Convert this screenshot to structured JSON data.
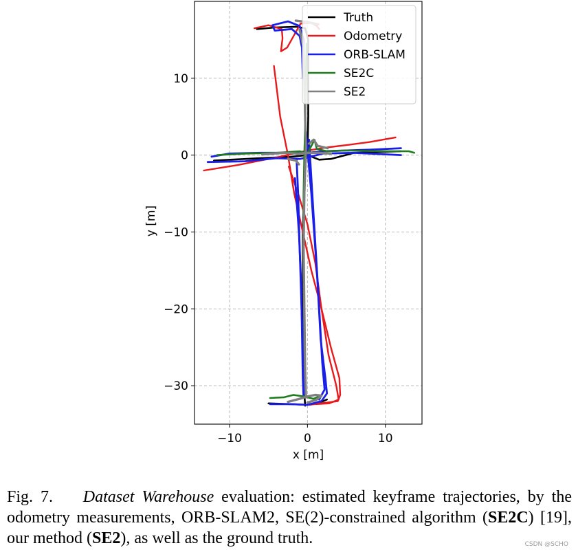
{
  "chart_data": {
    "type": "line",
    "xlabel": "x [m]",
    "ylabel": "y [m]",
    "xlim": [
      -14.5,
      14.7
    ],
    "ylim": [
      -35,
      20
    ],
    "xticks": [
      -10,
      0,
      10
    ],
    "yticks": [
      10,
      0,
      -10,
      -20,
      -30
    ],
    "xtick_labels": [
      "−10",
      "0",
      "10"
    ],
    "ytick_labels": [
      "10",
      "0",
      "−10",
      "−20",
      "−30"
    ],
    "grid": true,
    "legend_position": "top-right",
    "series": [
      {
        "name": "Truth",
        "color": "#000000",
        "paths": [
          [
            [
              -0.3,
              -32.6
            ],
            [
              -0.4,
              -31
            ],
            [
              -0.5,
              -25
            ],
            [
              -0.6,
              -18
            ],
            [
              -0.6,
              -10
            ],
            [
              -0.4,
              -4
            ],
            [
              -0.2,
              -0.5
            ],
            [
              0,
              0
            ],
            [
              0.1,
              5
            ],
            [
              0.1,
              10
            ],
            [
              0.1,
              15
            ],
            [
              -0.3,
              16.5
            ],
            [
              -1.5,
              16.7
            ],
            [
              -4.2,
              16.6
            ],
            [
              -6.5,
              16.4
            ]
          ],
          [
            [
              -12,
              -0.7
            ],
            [
              -6,
              -0.4
            ],
            [
              -2,
              -0.2
            ],
            [
              0,
              0
            ],
            [
              1.5,
              -0.6
            ],
            [
              3,
              -0.5
            ],
            [
              6,
              0.3
            ],
            [
              12,
              0.5
            ]
          ],
          [
            [
              -5,
              -32.3
            ],
            [
              -2,
              -32.4
            ],
            [
              0,
              -32.5
            ],
            [
              1.8,
              -32.1
            ],
            [
              2.5,
              -31.8
            ]
          ]
        ]
      },
      {
        "name": "Odometry",
        "color": "#e8191b",
        "paths": [
          [
            [
              -6.8,
              16.5
            ],
            [
              -5,
              16.9
            ],
            [
              -3.3,
              16.4
            ],
            [
              -3.2,
              15.2
            ],
            [
              -3.4,
              13.5
            ],
            [
              -2.6,
              14
            ],
            [
              -1.5,
              16
            ],
            [
              -0.9,
              17.1
            ],
            [
              0.5,
              17.2
            ],
            [
              1.2,
              16.8
            ],
            [
              1.5,
              16.4
            ]
          ],
          [
            [
              -4.3,
              11.6
            ],
            [
              -3.5,
              5
            ],
            [
              -2.5,
              0
            ],
            [
              -1.7,
              -5
            ],
            [
              -0.6,
              -10
            ],
            [
              0.5,
              -15
            ],
            [
              1.8,
              -20
            ],
            [
              3,
              -25
            ],
            [
              4.1,
              -29
            ],
            [
              4.2,
              -31.2
            ],
            [
              3.9,
              -32
            ],
            [
              2.5,
              -32.2
            ],
            [
              1.5,
              -32.3
            ],
            [
              0.3,
              -32.5
            ]
          ],
          [
            [
              -2.4,
              -1.5
            ],
            [
              -1.2,
              -5
            ],
            [
              0,
              -9
            ],
            [
              1,
              -14
            ],
            [
              1.8,
              -20
            ],
            [
              2.7,
              -26
            ],
            [
              3.7,
              -30
            ],
            [
              4,
              -31.8
            ],
            [
              2.8,
              -32.3
            ],
            [
              1,
              -32.4
            ]
          ],
          [
            [
              -13.3,
              -2
            ],
            [
              -9,
              -1.3
            ],
            [
              -4,
              -0.3
            ],
            [
              0,
              0.6
            ],
            [
              2.5,
              1
            ],
            [
              5,
              1.3
            ],
            [
              8,
              1.7
            ],
            [
              11.3,
              2.3
            ]
          ]
        ]
      },
      {
        "name": "ORB-SLAM",
        "color": "#1a1fe8",
        "paths": [
          [
            [
              -12.3,
              -0.2
            ],
            [
              -10,
              0.2
            ],
            [
              -6,
              0.3
            ],
            [
              -2.5,
              0.3
            ],
            [
              -0.9,
              0.4
            ],
            [
              0,
              0.3
            ],
            [
              2,
              0.5
            ],
            [
              5,
              0.6
            ],
            [
              8,
              0.7
            ],
            [
              12,
              0.9
            ]
          ],
          [
            [
              -12.8,
              -0.9
            ],
            [
              -8,
              -0.8
            ],
            [
              -4,
              -0.4
            ],
            [
              -1,
              -0.5
            ],
            [
              0,
              -0.3
            ],
            [
              2,
              0.2
            ],
            [
              6,
              0.3
            ],
            [
              10,
              0.1
            ],
            [
              12,
              0
            ]
          ],
          [
            [
              -1.6,
              -3
            ],
            [
              -1.1,
              -10
            ],
            [
              -0.8,
              -17
            ],
            [
              -0.7,
              -23
            ],
            [
              -0.6,
              -29
            ],
            [
              -0.5,
              -31.5
            ]
          ],
          [
            [
              -0.2,
              3
            ],
            [
              0.5,
              -5
            ],
            [
              1.2,
              -15
            ],
            [
              1.7,
              -24
            ],
            [
              2.3,
              -29
            ],
            [
              2.5,
              -31
            ],
            [
              1.8,
              -32
            ],
            [
              0,
              -32.5
            ],
            [
              -2,
              -32.4
            ],
            [
              -4.8,
              -32.4
            ]
          ],
          [
            [
              0.2,
              2
            ],
            [
              0.8,
              -8
            ],
            [
              1.4,
              -18
            ],
            [
              1.9,
              -27
            ],
            [
              2.2,
              -30.5
            ],
            [
              1.5,
              -31.8
            ]
          ],
          [
            [
              -0.4,
              10
            ],
            [
              -0.5,
              15
            ],
            [
              -1,
              16.8
            ],
            [
              -2.5,
              17.4
            ],
            [
              -4.5,
              16.9
            ],
            [
              -4.2,
              16.2
            ],
            [
              -2,
              16.4
            ],
            [
              -1,
              15.5
            ],
            [
              -0.7,
              14
            ],
            [
              -0.6,
              10
            ]
          ],
          [
            [
              -1.4,
              -0.5
            ],
            [
              -1.2,
              -5
            ],
            [
              -1,
              -12
            ],
            [
              -0.6,
              -25
            ],
            [
              -0.3,
              -31
            ]
          ]
        ]
      },
      {
        "name": "SE2C",
        "color": "#1e7b1e",
        "paths": [
          [
            [
              -11.6,
              0
            ],
            [
              -8,
              0.2
            ],
            [
              -4,
              0.3
            ],
            [
              -1,
              0.5
            ],
            [
              0,
              0.2
            ],
            [
              0.9,
              2
            ],
            [
              1.2,
              0.8
            ],
            [
              2.5,
              0.5
            ],
            [
              5,
              0.6
            ],
            [
              9,
              0.5
            ],
            [
              13,
              0.5
            ],
            [
              13.7,
              0.3
            ]
          ],
          [
            [
              -0.2,
              -31.5
            ],
            [
              -0.4,
              -25
            ],
            [
              -0.5,
              -15
            ],
            [
              -0.5,
              -5
            ],
            [
              -0.4,
              0
            ],
            [
              -0.3,
              4
            ],
            [
              -0.2,
              10
            ],
            [
              -0.1,
              14.5
            ]
          ],
          [
            [
              -4.8,
              -31.6
            ],
            [
              -3,
              -31.5
            ],
            [
              -1.8,
              -31.2
            ],
            [
              -0.5,
              -31.4
            ],
            [
              0.8,
              -31.7
            ],
            [
              1.5,
              -31.4
            ]
          ]
        ]
      },
      {
        "name": "SE2",
        "color": "#7f7f7f",
        "paths": [
          [
            [
              -5.8,
              0.1
            ],
            [
              -3,
              0.3
            ],
            [
              -1.2,
              0.2
            ],
            [
              0,
              0.3
            ],
            [
              1.5,
              0.3
            ],
            [
              3,
              0.2
            ]
          ],
          [
            [
              -1,
              16.3
            ],
            [
              -0.5,
              14
            ],
            [
              -0.4,
              10
            ],
            [
              -0.3,
              5
            ],
            [
              -0.2,
              1
            ],
            [
              -0.4,
              -5
            ],
            [
              -0.5,
              -12
            ],
            [
              -0.4,
              -20
            ],
            [
              -0.3,
              -28
            ],
            [
              -0.2,
              -31.5
            ]
          ],
          [
            [
              -1.5,
              17.5
            ],
            [
              0,
              17.3
            ],
            [
              1.4,
              17
            ]
          ],
          [
            [
              -2.5,
              -0.5
            ],
            [
              -1.5,
              -0.7
            ],
            [
              -1.1,
              -1.2
            ]
          ],
          [
            [
              0.2,
              1.5
            ],
            [
              0.8,
              2
            ],
            [
              1.3,
              1.2
            ],
            [
              2.6,
              0.9
            ]
          ],
          [
            [
              -2.5,
              -32.1
            ],
            [
              -1,
              -31.7
            ],
            [
              0,
              -31.4
            ],
            [
              1,
              -31.2
            ],
            [
              1.8,
              -31.3
            ],
            [
              1.2,
              -31.8
            ],
            [
              0,
              -32.2
            ]
          ]
        ]
      }
    ]
  },
  "caption": {
    "prefix": "Fig. 7.",
    "dataset": "Dataset Warehouse",
    "text1": " evaluation: estimated keyframe trajectories, by the odometry measurements, ORB-SLAM2, SE(2)-constrained algorithm (",
    "se2c": "SE2C",
    "text2": ") [19], our method (",
    "se2": "SE2",
    "text3": "), as well as the ground truth."
  },
  "watermark": "CSDN @SCHO"
}
